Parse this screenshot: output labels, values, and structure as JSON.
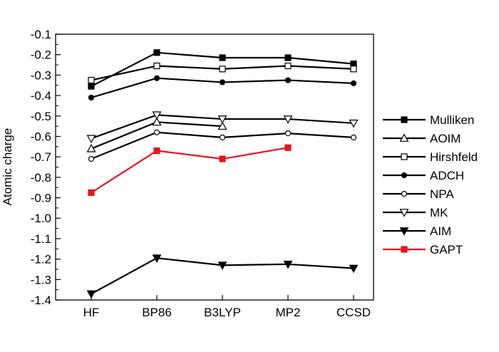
{
  "chart_data": {
    "type": "line",
    "title": "",
    "xlabel": "",
    "ylabel": "Atomic charge",
    "categories": [
      "HF",
      "BP86",
      "B3LYP",
      "MP2",
      "CCSD"
    ],
    "ylim": [
      -1.4,
      -0.1
    ],
    "yticks": [
      "-0.1",
      "-0.2",
      "-0.3",
      "-0.4",
      "-0.5",
      "-0.6",
      "-0.7",
      "-0.8",
      "-0.9",
      "-1.0",
      "-1.1",
      "-1.2",
      "-1.3",
      "-1.4"
    ],
    "grid": false,
    "legend_position": "right",
    "series": [
      {
        "name": "Mulliken",
        "color": "#000000",
        "marker": "square-filled",
        "values": [
          -0.355,
          -0.19,
          -0.215,
          -0.215,
          -0.245
        ]
      },
      {
        "name": "AOIM",
        "color": "#000000",
        "marker": "triangle-up-open",
        "values": [
          -0.66,
          -0.53,
          -0.55,
          null,
          null
        ]
      },
      {
        "name": "Hirshfeld",
        "color": "#000000",
        "marker": "square-open",
        "values": [
          -0.325,
          -0.255,
          -0.27,
          -0.255,
          -0.27
        ]
      },
      {
        "name": "ADCH",
        "color": "#000000",
        "marker": "circle-filled",
        "values": [
          -0.41,
          -0.315,
          -0.335,
          -0.325,
          -0.34
        ]
      },
      {
        "name": "NPA",
        "color": "#000000",
        "marker": "circle-open",
        "values": [
          -0.71,
          -0.58,
          -0.605,
          -0.585,
          -0.605
        ]
      },
      {
        "name": "MK",
        "color": "#000000",
        "marker": "triangle-down-open",
        "values": [
          -0.61,
          -0.495,
          -0.515,
          -0.515,
          -0.535
        ]
      },
      {
        "name": "AIM",
        "color": "#000000",
        "marker": "triangle-down-filled",
        "values": [
          -1.37,
          -1.195,
          -1.23,
          -1.225,
          -1.245
        ]
      },
      {
        "name": "GAPT",
        "color": "#e8141c",
        "marker": "square-filled",
        "values": [
          -0.875,
          -0.67,
          -0.71,
          -0.655,
          null
        ]
      }
    ]
  }
}
